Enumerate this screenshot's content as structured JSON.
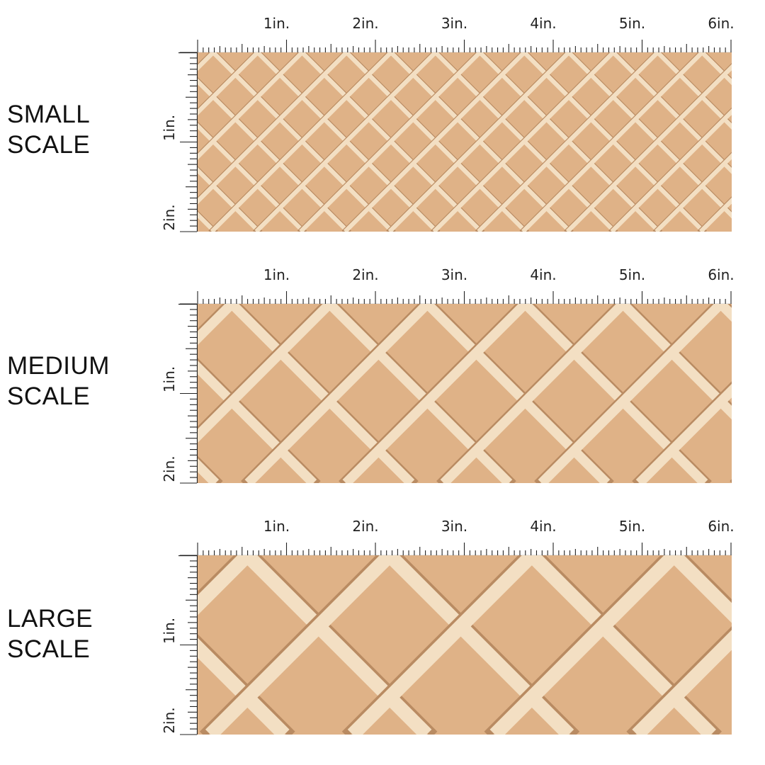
{
  "ruler": {
    "top_labels": [
      "1in.",
      "2in.",
      "3in.",
      "4in.",
      "5in.",
      "6in."
    ],
    "side_labels": [
      "1in.",
      "2in."
    ]
  },
  "colors": {
    "fabric_background": "#dfb287",
    "lattice_light": "#f3dfc3",
    "lattice_shadow": "#b98b62",
    "ruler_ink": "#222222"
  },
  "panels": [
    {
      "id": "small",
      "label_line1": "SMALL",
      "label_line2": "SCALE",
      "repeat_in": 0.5
    },
    {
      "id": "medium",
      "label_line1": "MEDIUM",
      "label_line2": "SCALE",
      "repeat_in": 1.1
    },
    {
      "id": "large",
      "label_line1": "LARGE",
      "label_line2": "SCALE",
      "repeat_in": 1.6
    }
  ]
}
